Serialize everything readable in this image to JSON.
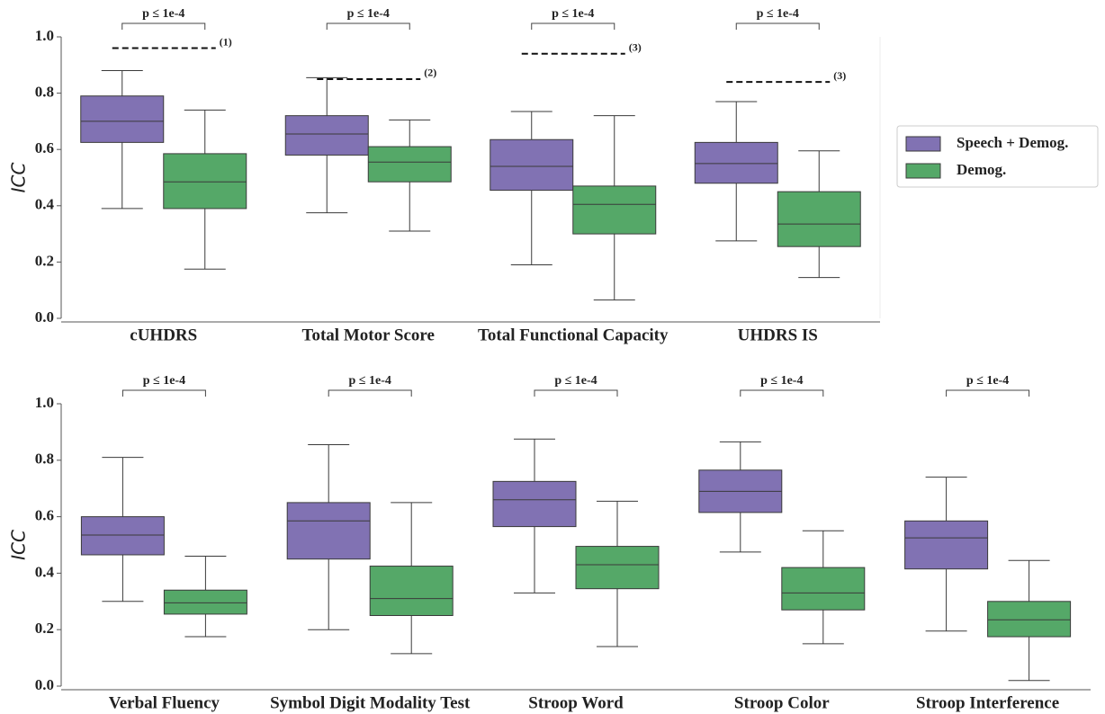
{
  "chart_data": [
    {
      "type": "box",
      "ylabel": "ICC",
      "categories": [
        "cUHDRS",
        "Total Motor Score",
        "Total Functional Capacity",
        "UHDRS IS"
      ],
      "ylim": [
        0,
        1
      ],
      "yticks": [
        {
          "value": 0,
          "label": "0.0"
        },
        0.2,
        0.4,
        0.6,
        0.8,
        {
          "value": 1,
          "label": "1.0"
        }
      ],
      "legend": "right",
      "series": [
        {
          "name": "Speech + Demog.",
          "color": "#8172b3",
          "values": [
            [
              0.39,
              0.625,
              0.7,
              0.79,
              0.88
            ],
            [
              0.375,
              0.58,
              0.655,
              0.72,
              0.855
            ],
            [
              0.19,
              0.455,
              0.54,
              0.635,
              0.735
            ],
            [
              0.275,
              0.48,
              0.55,
              0.625,
              0.77
            ]
          ]
        },
        {
          "name": "Demog.",
          "color": "#55a868",
          "values": [
            [
              0.175,
              0.39,
              0.485,
              0.585,
              0.74
            ],
            [
              0.31,
              0.485,
              0.555,
              0.61,
              0.705
            ],
            [
              0.065,
              0.3,
              0.405,
              0.47,
              0.72
            ],
            [
              0.145,
              0.255,
              0.335,
              0.45,
              0.595
            ]
          ]
        }
      ],
      "significance": [
        "p ≤ 1e-4",
        "p ≤ 1e-4",
        "p ≤ 1e-4",
        "p ≤ 1e-4"
      ],
      "reference_lines": [
        {
          "value": 0.96,
          "label": "(1)"
        },
        {
          "value": 0.85,
          "label": "(2)"
        },
        {
          "value": 0.94,
          "label": "(3)"
        },
        {
          "value": 0.84,
          "label": "(3)"
        }
      ]
    },
    {
      "type": "box",
      "ylabel": "ICC",
      "categories": [
        "Verbal Fluency",
        "Symbol Digit Modality Test",
        "Stroop Word",
        "Stroop Color",
        "Stroop Interference"
      ],
      "ylim": [
        0,
        1
      ],
      "yticks": [
        {
          "value": 0,
          "label": "0.0"
        },
        0.2,
        0.4,
        0.6,
        0.8,
        {
          "value": 1,
          "label": "1.0"
        }
      ],
      "series": [
        {
          "color": "#8172b3",
          "values": [
            [
              0.3,
              0.465,
              0.535,
              0.6,
              0.81
            ],
            [
              0.2,
              0.45,
              0.585,
              0.65,
              0.855
            ],
            [
              0.33,
              0.565,
              0.66,
              0.725,
              0.875
            ],
            [
              0.475,
              0.615,
              0.69,
              0.765,
              0.865
            ],
            [
              0.195,
              0.415,
              0.525,
              0.585,
              0.74
            ]
          ]
        },
        {
          "color": "#55a868",
          "values": [
            [
              0.175,
              0.255,
              0.295,
              0.34,
              0.46
            ],
            [
              0.115,
              0.25,
              0.31,
              0.425,
              0.65
            ],
            [
              0.14,
              0.345,
              0.43,
              0.495,
              0.655
            ],
            [
              0.15,
              0.27,
              0.33,
              0.42,
              0.55
            ],
            [
              0.02,
              0.175,
              0.235,
              0.3,
              0.445
            ]
          ]
        }
      ],
      "significance": [
        "p ≤ 1e-4",
        "p ≤ 1e-4",
        "p ≤ 1e-4",
        "p ≤ 1e-4",
        "p ≤ 1e-4"
      ]
    }
  ]
}
